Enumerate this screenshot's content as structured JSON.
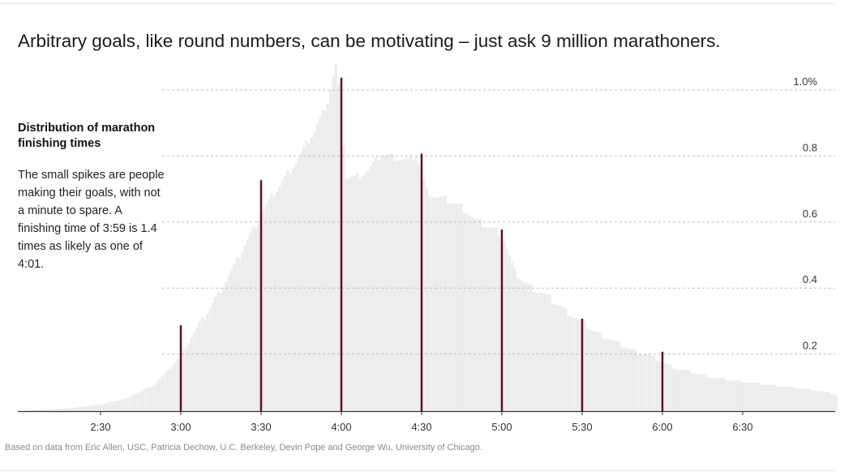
{
  "title": "Arbitrary goals, like round numbers, can be motivating – just ask 9 million marathoners.",
  "subtitle": "Distribution of marathon finishing times",
  "description": "The small spikes are people making their goals, with not a minute to spare. A finishing time of 3:59 is 1.4 times as likely as one of 4:01.",
  "source": "Based on data from Eric Allen, USC, Patricia Dechow, U.C. Berkeley, Devin Pope and George Wu, University of Chicago.",
  "chart_data": {
    "type": "bar",
    "xlabel": "",
    "ylabel": "",
    "x_unit": "minutes",
    "xlim": [
      120,
      436
    ],
    "ylim": [
      0,
      1.0
    ],
    "grid": true,
    "x_ticks": [
      {
        "value": 150,
        "label": "2:30"
      },
      {
        "value": 180,
        "label": "3:00"
      },
      {
        "value": 210,
        "label": "3:30"
      },
      {
        "value": 240,
        "label": "4:00"
      },
      {
        "value": 270,
        "label": "4:30"
      },
      {
        "value": 300,
        "label": "5:00"
      },
      {
        "value": 330,
        "label": "5:30"
      },
      {
        "value": 360,
        "label": "6:00"
      },
      {
        "value": 390,
        "label": "6:30"
      }
    ],
    "y_ticks": [
      {
        "value": 0.2,
        "label": "0.2"
      },
      {
        "value": 0.4,
        "label": "0.4"
      },
      {
        "value": 0.6,
        "label": "0.6"
      },
      {
        "value": 0.8,
        "label": "0.8"
      },
      {
        "value": 1.0,
        "label": "1.0%"
      }
    ],
    "highlights": [
      {
        "minute": 180,
        "value": 0.26
      },
      {
        "minute": 210,
        "value": 0.7
      },
      {
        "minute": 240,
        "value": 1.01
      },
      {
        "minute": 270,
        "value": 0.78
      },
      {
        "minute": 300,
        "value": 0.55
      },
      {
        "minute": 330,
        "value": 0.28
      },
      {
        "minute": 360,
        "value": 0.18
      }
    ],
    "distribution_points": [
      [
        120,
        0.0
      ],
      [
        140,
        0.01
      ],
      [
        150,
        0.02
      ],
      [
        160,
        0.04
      ],
      [
        170,
        0.08
      ],
      [
        175,
        0.12
      ],
      [
        180,
        0.17
      ],
      [
        185,
        0.24
      ],
      [
        190,
        0.3
      ],
      [
        195,
        0.37
      ],
      [
        200,
        0.44
      ],
      [
        205,
        0.52
      ],
      [
        210,
        0.6
      ],
      [
        215,
        0.66
      ],
      [
        220,
        0.72
      ],
      [
        225,
        0.78
      ],
      [
        230,
        0.85
      ],
      [
        235,
        0.94
      ],
      [
        238,
        1.05
      ],
      [
        240,
        0.92
      ],
      [
        242,
        0.71
      ],
      [
        245,
        0.71
      ],
      [
        250,
        0.73
      ],
      [
        255,
        0.78
      ],
      [
        260,
        0.77
      ],
      [
        265,
        0.76
      ],
      [
        268,
        0.78
      ],
      [
        272,
        0.67
      ],
      [
        275,
        0.65
      ],
      [
        280,
        0.64
      ],
      [
        285,
        0.62
      ],
      [
        290,
        0.58
      ],
      [
        295,
        0.56
      ],
      [
        300,
        0.54
      ],
      [
        305,
        0.42
      ],
      [
        310,
        0.38
      ],
      [
        315,
        0.36
      ],
      [
        320,
        0.33
      ],
      [
        325,
        0.3
      ],
      [
        330,
        0.27
      ],
      [
        335,
        0.24
      ],
      [
        340,
        0.22
      ],
      [
        345,
        0.2
      ],
      [
        350,
        0.18
      ],
      [
        355,
        0.17
      ],
      [
        360,
        0.15
      ],
      [
        365,
        0.13
      ],
      [
        370,
        0.12
      ],
      [
        380,
        0.1
      ],
      [
        390,
        0.09
      ],
      [
        400,
        0.08
      ],
      [
        410,
        0.07
      ],
      [
        420,
        0.06
      ],
      [
        425,
        0.05
      ]
    ],
    "colors": {
      "distribution": "#ebebeb",
      "highlight": "#5c0f2a",
      "axis": "#333333",
      "grid": "#bdbdbd"
    }
  }
}
